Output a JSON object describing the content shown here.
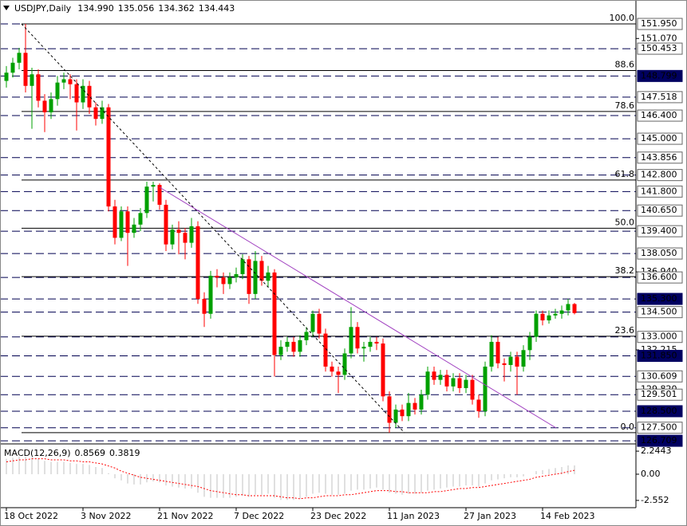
{
  "chart_data": {
    "type": "candlestick",
    "title": "USDJPY,Daily",
    "ohlc_labels": [
      "134.990",
      "135.056",
      "134.362",
      "134.443"
    ],
    "categories": [
      "18 Oct 2022",
      null,
      null,
      null,
      null,
      null,
      null,
      null,
      null,
      null,
      null,
      null,
      "3 Nov 2022",
      null,
      null,
      null,
      null,
      null,
      null,
      null,
      null,
      null,
      null,
      null,
      "21 Nov 2022",
      null,
      null,
      null,
      null,
      null,
      null,
      null,
      null,
      null,
      null,
      null,
      "7 Dec 2022",
      null,
      null,
      null,
      null,
      null,
      null,
      null,
      null,
      null,
      null,
      null,
      "23 Dec 2022",
      null,
      null,
      null,
      null,
      null,
      null,
      null,
      null,
      null,
      null,
      null,
      "11 Jan 2023",
      null,
      null,
      null,
      null,
      null,
      null,
      null,
      null,
      null,
      null,
      null,
      "27 Jan 2023",
      null,
      null,
      null,
      null,
      null,
      null,
      null,
      null,
      null,
      null,
      null,
      "14 Feb 2023",
      null,
      null,
      null,
      null,
      null
    ],
    "candles": {
      "open": [
        148.5,
        149.0,
        149.6,
        150.2,
        148.2,
        148.9,
        147.3,
        146.6,
        147.4,
        148.4,
        148.6,
        148.3,
        147.2,
        148.2,
        146.9,
        146.2,
        146.9,
        140.9,
        139.0,
        140.6,
        139.3,
        139.8,
        140.5,
        142.1,
        142.2,
        141.0,
        138.6,
        139.5,
        139.3,
        138.7,
        139.7,
        135.3,
        134.4,
        136.7,
        136.6,
        136.2,
        136.6,
        136.8,
        137.7,
        135.6,
        137.6,
        136.4,
        136.9,
        131.9,
        132.4,
        132.7,
        132.1,
        132.8,
        133.3,
        134.4,
        133.2,
        131.2,
        130.9,
        130.7,
        132.0,
        133.6,
        132.3,
        132.4,
        132.7,
        132.6,
        129.4,
        127.8,
        128.6,
        128.2,
        129.0,
        128.6,
        129.5,
        130.9,
        130.4,
        130.7,
        130.0,
        130.5,
        129.9,
        130.4,
        129.2,
        128.5,
        131.2,
        132.7,
        131.4,
        131.3,
        131.8,
        131.2,
        132.2,
        133.0,
        134.4,
        134.0,
        134.3,
        134.4,
        134.6,
        134.99
      ],
      "high": [
        149.4,
        149.9,
        150.5,
        151.95,
        149.3,
        149.2,
        147.7,
        147.8,
        148.8,
        149.0,
        148.9,
        148.6,
        148.6,
        148.5,
        147.2,
        147.3,
        147.1,
        141.3,
        140.9,
        140.9,
        140.2,
        140.8,
        142.4,
        142.4,
        142.3,
        141.3,
        139.8,
        140.0,
        139.6,
        140.2,
        140.0,
        135.7,
        137.0,
        137.1,
        136.9,
        136.9,
        137.2,
        138.0,
        137.9,
        138.2,
        137.9,
        137.3,
        137.1,
        132.8,
        133.0,
        133.0,
        133.1,
        133.6,
        134.6,
        134.7,
        133.5,
        131.5,
        131.2,
        132.3,
        134.8,
        133.9,
        132.7,
        133.0,
        133.0,
        132.9,
        129.7,
        128.9,
        128.9,
        129.6,
        129.3,
        129.8,
        131.2,
        131.2,
        131.0,
        131.0,
        130.8,
        130.8,
        130.7,
        130.7,
        129.5,
        131.5,
        133.1,
        133.0,
        131.7,
        132.1,
        132.1,
        132.5,
        133.3,
        134.6,
        134.6,
        134.6,
        134.7,
        134.9,
        135.3,
        135.056
      ],
      "low": [
        148.1,
        148.7,
        149.2,
        147.8,
        145.6,
        146.9,
        145.4,
        146.2,
        147.0,
        148.0,
        147.4,
        145.5,
        146.8,
        146.5,
        145.8,
        145.9,
        140.6,
        138.6,
        138.8,
        137.3,
        139.0,
        139.4,
        140.2,
        141.2,
        140.7,
        138.2,
        138.3,
        138.0,
        137.7,
        138.4,
        135.0,
        133.6,
        134.1,
        136.0,
        135.6,
        135.9,
        136.3,
        136.5,
        135.0,
        135.3,
        136.1,
        136.0,
        130.6,
        131.6,
        132.1,
        131.8,
        131.8,
        132.5,
        133.0,
        132.9,
        130.9,
        130.6,
        129.6,
        130.4,
        131.7,
        132.0,
        131.5,
        132.1,
        132.2,
        129.1,
        127.2,
        127.5,
        127.9,
        127.9,
        128.3,
        128.3,
        129.2,
        130.1,
        130.1,
        129.7,
        129.7,
        129.6,
        129.6,
        128.9,
        128.1,
        128.2,
        130.9,
        131.1,
        130.3,
        130.9,
        129.5,
        130.9,
        131.6,
        132.7,
        133.7,
        133.8,
        134.1,
        134.1,
        134.3,
        134.362
      ],
      "close": [
        149.0,
        149.6,
        150.2,
        148.2,
        148.9,
        147.3,
        146.6,
        147.4,
        148.4,
        148.6,
        148.3,
        147.2,
        148.2,
        146.9,
        146.2,
        146.9,
        140.9,
        139.0,
        140.6,
        139.3,
        139.8,
        140.5,
        142.1,
        142.2,
        141.0,
        138.6,
        139.5,
        139.3,
        138.7,
        139.7,
        135.3,
        134.4,
        136.7,
        136.6,
        136.2,
        136.6,
        136.8,
        137.7,
        135.6,
        137.6,
        136.4,
        136.9,
        131.9,
        132.4,
        132.7,
        132.1,
        132.8,
        133.3,
        134.4,
        133.2,
        131.2,
        130.9,
        130.7,
        132.0,
        133.6,
        132.3,
        132.4,
        132.7,
        132.6,
        129.4,
        127.8,
        128.6,
        128.2,
        129.0,
        128.6,
        129.5,
        130.9,
        130.4,
        130.7,
        130.0,
        130.5,
        129.9,
        130.4,
        129.2,
        128.5,
        131.2,
        132.7,
        131.4,
        131.3,
        131.8,
        131.2,
        132.2,
        133.0,
        134.4,
        134.0,
        134.3,
        134.4,
        134.6,
        134.99,
        134.443
      ]
    },
    "up_color": "#00a000",
    "down_color": "#ff0000",
    "ylim": [
      126.52,
      153.4
    ],
    "yticks": [
      {
        "value": 151.07,
        "label": "151.070"
      },
      {
        "value": 136.94,
        "label": "136.940"
      },
      {
        "value": 132.215,
        "label": "132.215"
      },
      {
        "value": 129.82,
        "label": "129.820"
      }
    ],
    "levels": [
      {
        "value": 151.95,
        "label": "151.950"
      },
      {
        "value": 150.453,
        "label": "150.453"
      },
      {
        "value": 147.518,
        "label": "147.518"
      },
      {
        "value": 146.4,
        "label": "146.400"
      },
      {
        "value": 145,
        "label": "145.000"
      },
      {
        "value": 143.856,
        "label": "143.856"
      },
      {
        "value": 142.8,
        "label": "142.800"
      },
      {
        "value": 141.8,
        "label": "141.800"
      },
      {
        "value": 140.65,
        "label": "140.650"
      },
      {
        "value": 139.4,
        "label": "139.400"
      },
      {
        "value": 138.05,
        "label": "138.050"
      },
      {
        "value": 136.6,
        "label": "136.600"
      },
      {
        "value": 134.5,
        "label": "134.500"
      },
      {
        "value": 133,
        "label": "133.000"
      },
      {
        "value": 130.609,
        "label": "130.609"
      },
      {
        "value": 129.501,
        "label": "129.501"
      },
      {
        "value": 127.5,
        "label": "127.500"
      }
    ],
    "highlighted_levels": [
      {
        "value": 148.799,
        "label": "148.799"
      },
      {
        "value": 135.3,
        "label": "135.300"
      },
      {
        "value": 131.85,
        "label": "131.850"
      },
      {
        "value": 128.5,
        "label": "128.500"
      },
      {
        "value": 126.709,
        "label": "126.709"
      }
    ],
    "fib_levels": [
      {
        "label": "100.0",
        "price": 151.95
      },
      {
        "label": "88.6",
        "price": 149.13
      },
      {
        "label": "78.6",
        "price": 146.65
      },
      {
        "label": "61.8",
        "price": 142.5
      },
      {
        "label": "50.0",
        "price": 139.58
      },
      {
        "label": "38.2",
        "price": 136.65
      },
      {
        "label": "23.6",
        "price": 133.04
      },
      {
        "label": "0.0",
        "price": 127.2
      }
    ],
    "indicator": {
      "title": "MACD(12,26,9)",
      "ylim": [
        -3.26,
        2.95
      ],
      "yticks": [
        2.2443,
        {
          "value": 0,
          "label": "0.00"
        },
        -2.552
      ],
      "histogram": {
        "color": "#c0c0c0",
        "values": [
          1.5,
          1.6,
          1.7,
          1.7,
          1.6,
          1.5,
          1.3,
          1.2,
          1.2,
          1.2,
          1.1,
          1.0,
          1.0,
          0.9,
          0.7,
          0.6,
          0.1,
          -0.4,
          -0.6,
          -0.9,
          -1.0,
          -1.0,
          -0.8,
          -0.7,
          -0.8,
          -1.1,
          -1.2,
          -1.3,
          -1.4,
          -1.4,
          -1.8,
          -2.2,
          -2.3,
          -2.3,
          -2.3,
          -2.3,
          -2.2,
          -2.1,
          -2.2,
          -2.0,
          -2.0,
          -1.9,
          -2.3,
          -2.5,
          -2.5,
          -2.5,
          -2.4,
          -2.2,
          -1.9,
          -1.8,
          -1.9,
          -2.0,
          -2.0,
          -1.9,
          -1.6,
          -1.5,
          -1.5,
          -1.4,
          -1.3,
          -1.5,
          -1.8,
          -1.9,
          -2.0,
          -1.9,
          -1.9,
          -1.8,
          -1.6,
          -1.5,
          -1.4,
          -1.3,
          -1.2,
          -1.2,
          -1.1,
          -1.1,
          -1.2,
          -0.9,
          -0.6,
          -0.5,
          -0.4,
          -0.3,
          -0.3,
          -0.2,
          0.0,
          0.3,
          0.4,
          0.5,
          0.6,
          0.7,
          0.85,
          0.8569
        ]
      },
      "signal": {
        "color": "#ff0000",
        "values": [
          1.2,
          1.3,
          1.4,
          1.4,
          1.5,
          1.5,
          1.5,
          1.4,
          1.4,
          1.4,
          1.3,
          1.3,
          1.2,
          1.2,
          1.1,
          1.0,
          0.8,
          0.6,
          0.3,
          0.1,
          -0.1,
          -0.3,
          -0.4,
          -0.5,
          -0.6,
          -0.7,
          -0.8,
          -0.9,
          -1.0,
          -1.1,
          -1.2,
          -1.4,
          -1.6,
          -1.7,
          -1.8,
          -1.9,
          -2.0,
          -2.0,
          -2.1,
          -2.1,
          -2.1,
          -2.1,
          -2.1,
          -2.2,
          -2.3,
          -2.3,
          -2.4,
          -2.3,
          -2.3,
          -2.2,
          -2.1,
          -2.1,
          -2.1,
          -2.0,
          -2.0,
          -1.9,
          -1.8,
          -1.7,
          -1.6,
          -1.6,
          -1.6,
          -1.7,
          -1.7,
          -1.8,
          -1.8,
          -1.8,
          -1.8,
          -1.7,
          -1.7,
          -1.6,
          -1.5,
          -1.4,
          -1.4,
          -1.3,
          -1.3,
          -1.2,
          -1.1,
          -1.0,
          -0.9,
          -0.8,
          -0.7,
          -0.6,
          -0.5,
          -0.3,
          -0.2,
          -0.1,
          0.0,
          0.1,
          0.25,
          0.3819
        ]
      }
    }
  }
}
